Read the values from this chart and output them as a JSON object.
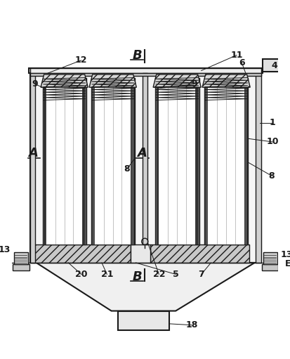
{
  "bg_color": "#f0f0f0",
  "line_color": "#1a1a1a",
  "fill_light": "#d8d8d8",
  "fill_white": "#ffffff",
  "fill_gray": "#b0b0b0",
  "labels": {
    "A_left": "A",
    "A_mid": "A",
    "B_top": "B",
    "B_bot": "B",
    "num_1": "1",
    "num_4": "4",
    "num_5": "5",
    "num_6": "6",
    "num_7": "7",
    "num_8_left": "8",
    "num_8_right": "8",
    "num_9_left": "9",
    "num_9_right": "9",
    "num_10": "10",
    "num_11": "11",
    "num_12": "12",
    "num_13_left": "13",
    "num_13_right": "13",
    "num_18": "18",
    "num_20": "20",
    "num_21": "21",
    "num_22": "22",
    "E": "E"
  }
}
